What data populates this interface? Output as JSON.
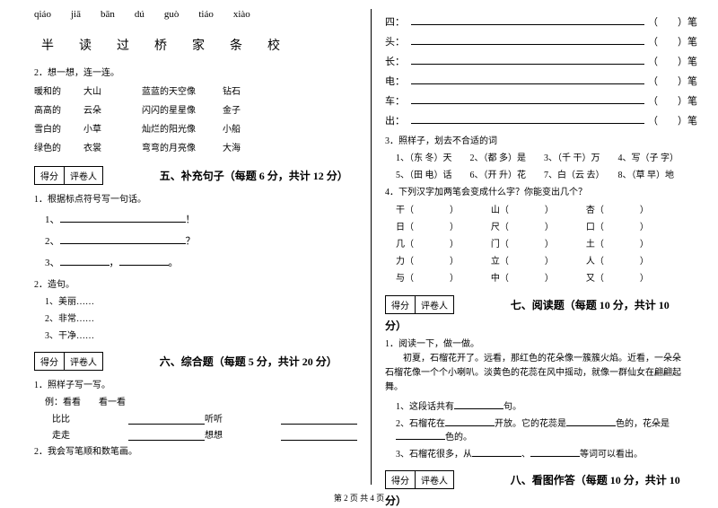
{
  "left": {
    "pinyin": [
      "qiáo",
      "jiā",
      "bān",
      "dú",
      "guò",
      "tiáo",
      "xiào"
    ],
    "chars": [
      "半",
      "读",
      "过",
      "桥",
      "家",
      "条",
      "校"
    ],
    "q2": "2．想一想，连一连。",
    "match": [
      [
        "暖和的",
        "大山",
        "蓝蓝的天空像",
        "钻石"
      ],
      [
        "高高的",
        "云朵",
        "闪闪的星星像",
        "金子"
      ],
      [
        "雪白的",
        "小草",
        "灿烂的阳光像",
        "小船"
      ],
      [
        "绿色的",
        "衣裳",
        "弯弯的月亮像",
        "大海"
      ]
    ],
    "score_l1": "得分",
    "score_l2": "评卷人",
    "sec5": "五、补充句子（每题 6 分，共计 12 分）",
    "q5_1": "1．根据标点符号写一句话。",
    "punct1": "1、",
    "punct1_end": "！",
    "punct2": "2、",
    "punct2_end": "？",
    "punct3": "3、",
    "punct3_mid": "，",
    "punct3_end": "。",
    "q5_2": "2．造句。",
    "s1": "1、美丽……",
    "s2": "2、非常……",
    "s3": "3、干净……",
    "sec6": "六、综合题（每题 5 分，共计 20 分）",
    "q6_1": "1．照样子写一写。",
    "ex_head": "例：看看　　看一看",
    "ex": [
      [
        "比比",
        "",
        "听听",
        ""
      ],
      [
        "走走",
        "",
        "想想",
        ""
      ]
    ],
    "q6_2": "2．我会写笔顺和数笔画。"
  },
  "right": {
    "strokes": [
      {
        "ch": "四：",
        "tail": "）笔"
      },
      {
        "ch": "头：",
        "tail": "）笔"
      },
      {
        "ch": "长：",
        "tail": "）笔"
      },
      {
        "ch": "电：",
        "tail": "）笔"
      },
      {
        "ch": "车：",
        "tail": "）笔"
      },
      {
        "ch": "出：",
        "tail": "）笔"
      }
    ],
    "q3": "3．照样子，划去不合适的词",
    "q3_line1": "1、（东 冬）天　　2、（都 多）是　　3、（千 干）万　　4、写（子 字）",
    "q3_line2": "5、（田 电）话　　6、（开 升）花　　7、白（云 去）　　8、（草 早）地",
    "q4": "4．下列汉字加两笔会变成什么字？你能变出几个？",
    "grid": [
      [
        "干（　　　　）",
        "山（　　　　）",
        "杏（　　　　）"
      ],
      [
        "日（　　　　）",
        "尺（　　　　）",
        "口（　　　　）"
      ],
      [
        "几（　　　　）",
        "门（　　　　）",
        "土（　　　　）"
      ],
      [
        "力（　　　　）",
        "立（　　　　）",
        "人（　　　　）"
      ],
      [
        "与（　　　　）",
        "中（　　　　）",
        "又（　　　　）"
      ]
    ],
    "score_l1": "得分",
    "score_l2": "评卷人",
    "sec7": "七、阅读题（每题 10 分，共计 10 分）",
    "q7_1": "1．阅读一下，做一做。",
    "passage": "　　初夏，石榴花开了。远看，那红色的花朵像一簇簇火焰。近看，一朵朵石榴花像一个个小喇叭。淡黄色的花蕊在风中摇动，就像一群仙女在翩翩起舞。",
    "r1a": "1、这段话共有",
    "r1b": "句。",
    "r2a": "2、石榴花在",
    "r2b": "开放。它的花蕊是",
    "r2c": "色的，花朵是",
    "r2d": "色的。",
    "r3a": "3、石榴花很多，从",
    "r3b": "、",
    "r3c": "等词可以看出。",
    "sec8": "八、看图作答（每题 10 分，共计 10 分）"
  },
  "footer": "第 2 页 共 4 页"
}
